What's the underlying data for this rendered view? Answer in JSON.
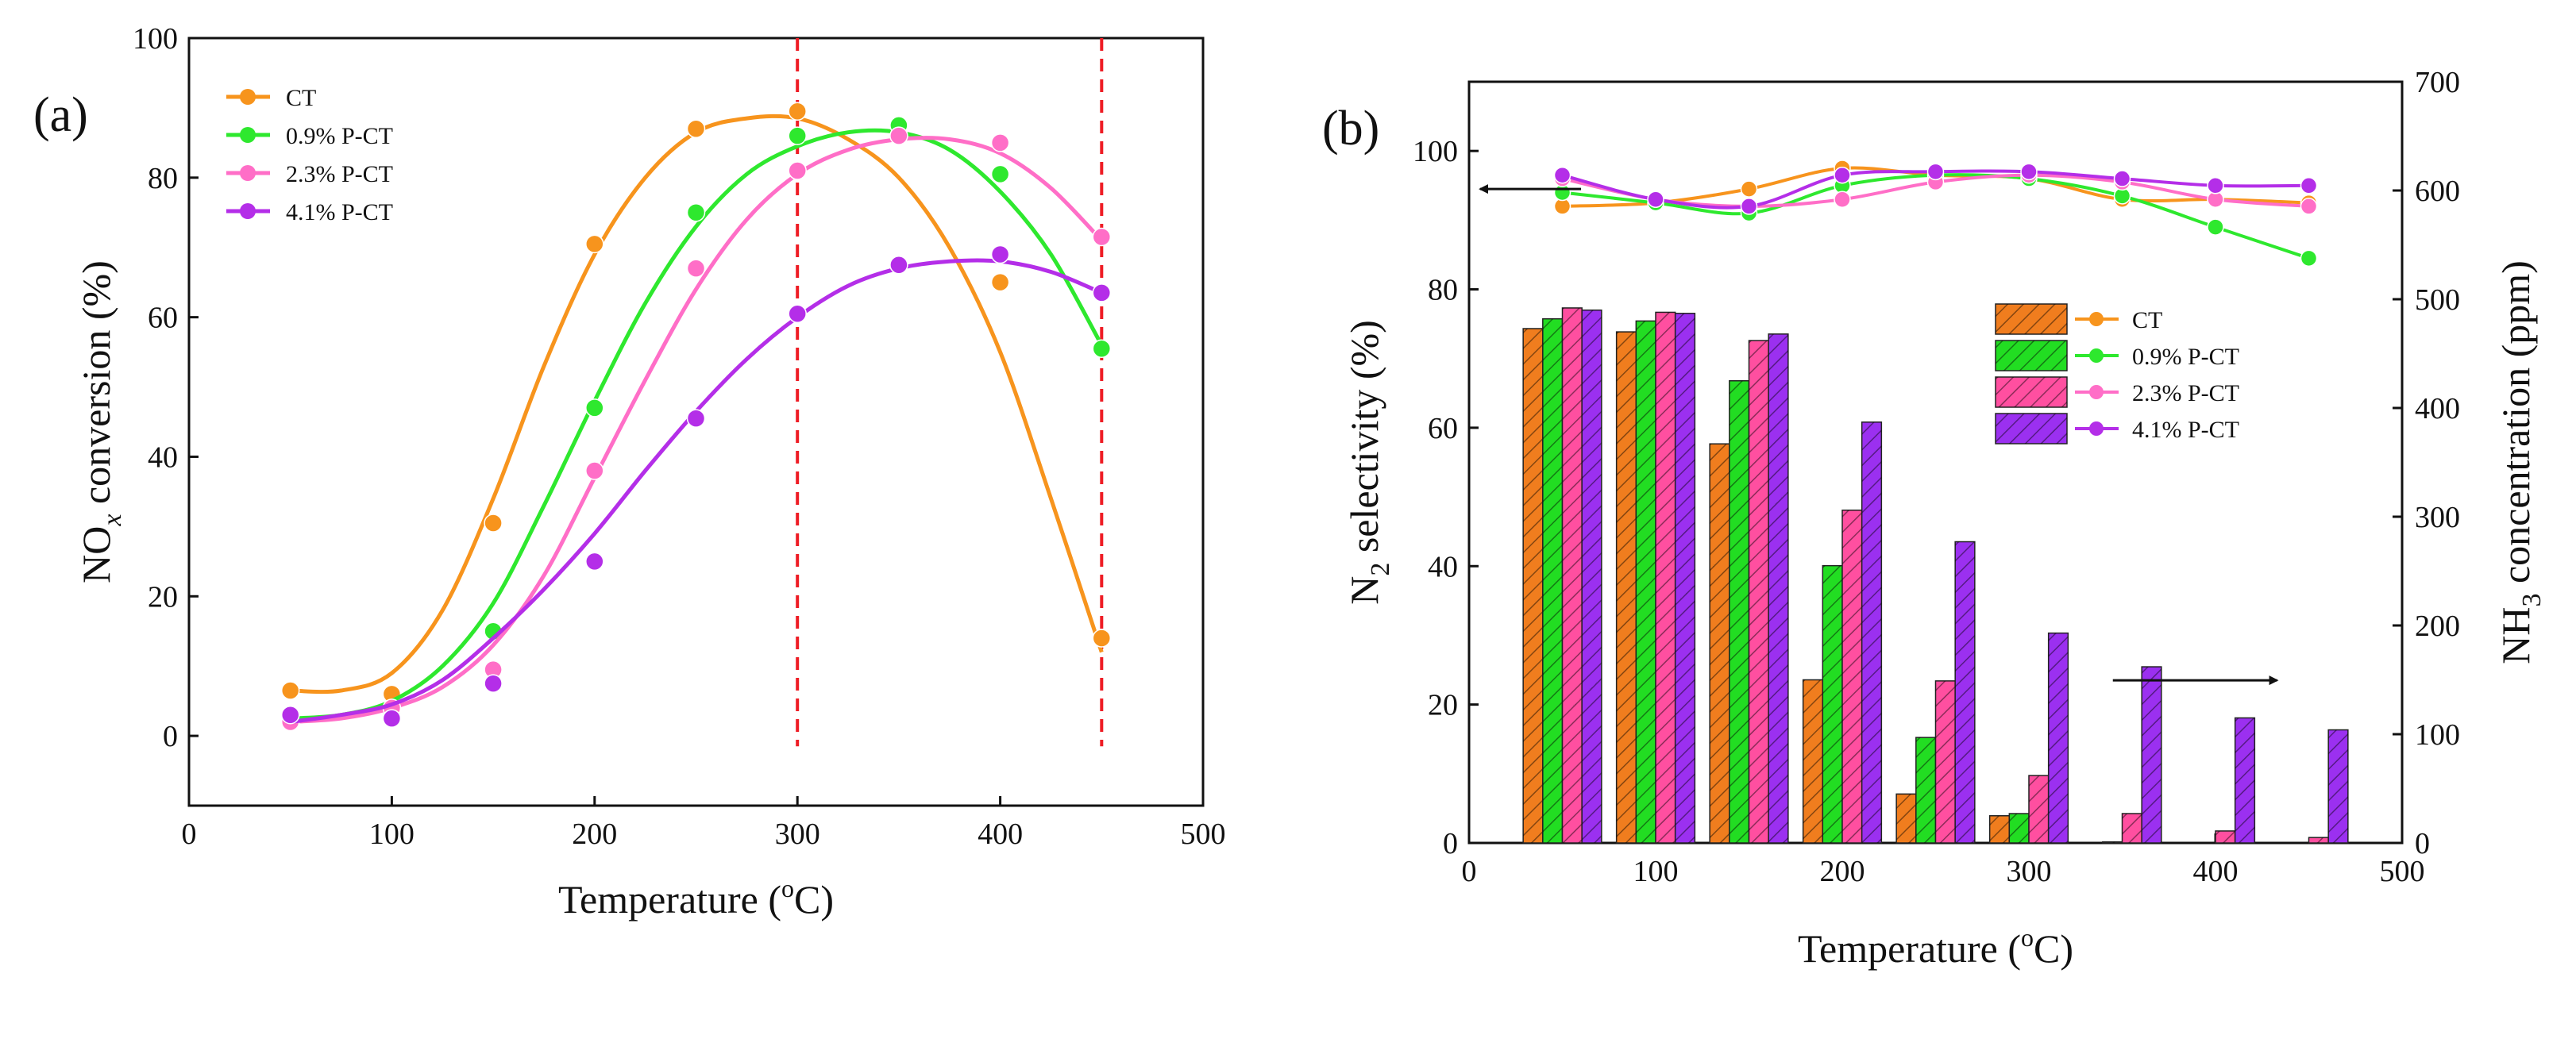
{
  "chart_data": [
    {
      "panel": "(a)",
      "type": "line",
      "xlabel": "Temperature",
      "xlabel_unit": "(oC)",
      "ylabel": "NOx conversion (%)",
      "xlim": [
        0,
        500
      ],
      "ylim": [
        -10,
        100
      ],
      "xticks": [
        0,
        100,
        200,
        300,
        400,
        500
      ],
      "yticks": [
        0,
        20,
        40,
        60,
        80,
        100
      ],
      "x": [
        50,
        100,
        150,
        200,
        250,
        300,
        350,
        400,
        450
      ],
      "reference_lines_x": [
        300,
        450
      ],
      "legend_position": "top-left",
      "series": [
        {
          "name": "CT",
          "color": "#f7941d",
          "values": [
            6.5,
            6,
            30.5,
            70.5,
            87,
            89.5,
            86,
            65,
            14
          ],
          "fit_x": [
            50,
            75,
            100,
            125,
            150,
            175,
            200,
            225,
            250,
            275,
            300,
            325,
            350,
            375,
            400,
            425,
            450
          ],
          "fit_y": [
            6.5,
            6.5,
            9,
            18,
            34,
            53,
            69,
            80,
            86.5,
            88.5,
            88.5,
            85.5,
            80,
            70,
            55,
            34,
            12
          ]
        },
        {
          "name": "0.9% P-CT",
          "color": "#2ee82e",
          "values": [
            3,
            3,
            15,
            47,
            75,
            86,
            87.5,
            80.5,
            55.5
          ],
          "fit_x": [
            50,
            75,
            100,
            125,
            150,
            175,
            200,
            225,
            250,
            275,
            300,
            325,
            350,
            375,
            400,
            425,
            450
          ],
          "fit_y": [
            2.5,
            3,
            5,
            10,
            19,
            33,
            48,
            62,
            73,
            80.5,
            84.5,
            86.5,
            86.5,
            84,
            78,
            69,
            56
          ]
        },
        {
          "name": "2.3% P-CT",
          "color": "#ff6ec7",
          "values": [
            2,
            4,
            9.5,
            38,
            67,
            81,
            86,
            85,
            71.5
          ],
          "fit_x": [
            50,
            75,
            100,
            125,
            150,
            175,
            200,
            225,
            250,
            275,
            300,
            325,
            350,
            375,
            400,
            425,
            450
          ],
          "fit_y": [
            2,
            2.5,
            4,
            7,
            13,
            23,
            37,
            51,
            64,
            74,
            80.5,
            84,
            85.5,
            85.5,
            83.5,
            78.5,
            71
          ]
        },
        {
          "name": "4.1% P-CT",
          "color": "#b42ee8",
          "values": [
            3,
            2.5,
            7.5,
            25,
            45.5,
            60.5,
            67.5,
            69,
            63.5
          ],
          "fit_x": [
            50,
            75,
            100,
            125,
            150,
            175,
            200,
            225,
            250,
            275,
            300,
            325,
            350,
            375,
            400,
            425,
            450
          ],
          "fit_y": [
            2,
            3,
            4.5,
            8,
            14,
            21,
            29,
            38,
            46.5,
            54,
            60,
            64.5,
            67,
            68,
            68,
            66.5,
            63.5
          ]
        }
      ]
    },
    {
      "panel": "(b)",
      "type": "bar+line",
      "xlabel": "Temperature",
      "xlabel_unit": "(oC)",
      "ylabel_left": "N2 selectivity (%)",
      "ylabel_right": "NH3 concentration (ppm)",
      "xlim": [
        0,
        500
      ],
      "ylim_left": [
        0,
        110
      ],
      "ylim_right": [
        0,
        700
      ],
      "xticks": [
        0,
        100,
        200,
        300,
        400,
        500
      ],
      "yticks_left": [
        0,
        20,
        40,
        60,
        80,
        100
      ],
      "yticks_right": [
        0,
        100,
        200,
        300,
        400,
        500,
        600,
        700
      ],
      "x": [
        50,
        100,
        150,
        200,
        250,
        300,
        350,
        400,
        450
      ],
      "arrow_left_points_to": "left axis",
      "arrow_right_points_to": "right axis",
      "legend_position": "center-right",
      "bars_ppm": [
        {
          "name": "CT",
          "color": "#f07d1e",
          "values": [
            473,
            470,
            367,
            150,
            45,
            25,
            0,
            0,
            0
          ]
        },
        {
          "name": "0.9% P-CT",
          "color": "#22dd22",
          "values": [
            482,
            480,
            425,
            255,
            97,
            27,
            1,
            0,
            0
          ]
        },
        {
          "name": "2.3% P-CT",
          "color": "#ff4fa0",
          "values": [
            492,
            488,
            462,
            306,
            149,
            62,
            27,
            11,
            5
          ]
        },
        {
          "name": "4.1% P-CT",
          "color": "#9b30f0",
          "values": [
            490,
            487,
            468,
            387,
            277,
            193,
            162,
            115,
            104
          ]
        }
      ],
      "lines_percent": [
        {
          "name": "CT",
          "color": "#f7941d",
          "values": [
            92,
            92.5,
            94.5,
            97.5,
            96.5,
            96,
            93,
            93,
            92.5
          ]
        },
        {
          "name": "0.9% P-CT",
          "color": "#2ee82e",
          "values": [
            94,
            92.5,
            91,
            95,
            96.5,
            96,
            93.5,
            89,
            84.5
          ]
        },
        {
          "name": "2.3% P-CT",
          "color": "#ff6ec7",
          "values": [
            96,
            93,
            92,
            93,
            95.5,
            96.5,
            95.5,
            93,
            92
          ]
        },
        {
          "name": "4.1% P-CT",
          "color": "#b42ee8",
          "values": [
            96.5,
            93,
            92,
            96.5,
            97,
            97,
            96,
            95,
            95
          ]
        }
      ]
    }
  ]
}
